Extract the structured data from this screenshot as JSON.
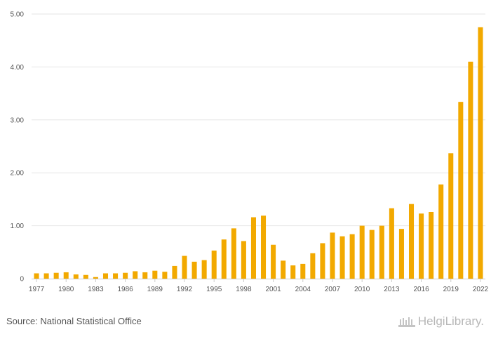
{
  "chart_data": {
    "type": "bar",
    "categories": [
      "1977",
      "1978",
      "1979",
      "1980",
      "1981",
      "1982",
      "1983",
      "1984",
      "1985",
      "1986",
      "1987",
      "1988",
      "1989",
      "1990",
      "1991",
      "1992",
      "1993",
      "1994",
      "1995",
      "1996",
      "1997",
      "1998",
      "1999",
      "2000",
      "2001",
      "2002",
      "2003",
      "2004",
      "2005",
      "2006",
      "2007",
      "2008",
      "2009",
      "2010",
      "2011",
      "2012",
      "2013",
      "2014",
      "2015",
      "2016",
      "2017",
      "2018",
      "2019",
      "2020",
      "2021",
      "2022"
    ],
    "values": [
      0.1,
      0.1,
      0.11,
      0.12,
      0.08,
      0.07,
      0.03,
      0.1,
      0.1,
      0.11,
      0.14,
      0.12,
      0.15,
      0.13,
      0.24,
      0.43,
      0.32,
      0.35,
      0.53,
      0.74,
      0.95,
      0.71,
      1.16,
      1.19,
      0.64,
      0.34,
      0.25,
      0.28,
      0.48,
      0.67,
      0.87,
      0.8,
      0.84,
      1.0,
      0.92,
      1.0,
      1.33,
      0.94,
      1.41,
      1.23,
      1.26,
      1.78,
      2.37,
      3.34,
      4.1,
      4.75
    ],
    "x_tick_labels": [
      "1977",
      "1980",
      "1983",
      "1986",
      "1989",
      "1992",
      "1995",
      "1998",
      "2001",
      "2004",
      "2007",
      "2010",
      "2013",
      "2016",
      "2019",
      "2022"
    ],
    "y_ticks": [
      0,
      1,
      2,
      3,
      4,
      5
    ],
    "y_tick_labels": [
      "0",
      "1.00",
      "2.00",
      "3.00",
      "4.00",
      "5.00"
    ],
    "ylim": [
      0,
      5
    ],
    "grid": true,
    "title": "",
    "xlabel": "",
    "ylabel": "",
    "bar_color": "#f2a900"
  },
  "footer": {
    "source": "Source: National Statistical Office",
    "brand": "HelgiLibrary."
  }
}
